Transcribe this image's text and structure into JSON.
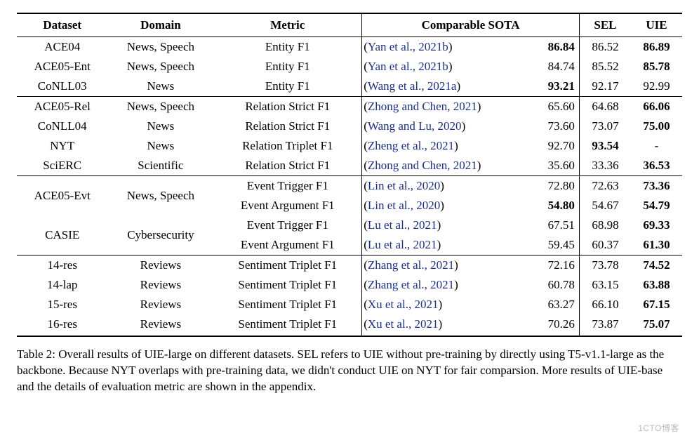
{
  "table": {
    "columns": [
      "Dataset",
      "Domain",
      "Metric",
      "Comparable SOTA",
      "",
      "SEL",
      "UIE"
    ],
    "header_fontweight": "bold",
    "column_align": [
      "center",
      "center",
      "center",
      "left",
      "right",
      "center",
      "center"
    ],
    "cite_color": "#1a2f8f",
    "border_color": "#000000",
    "groups": [
      {
        "rows": [
          {
            "dataset": "ACE04",
            "domain": "News, Speech",
            "metric": "Entity F1",
            "cite": "Yan et al., 2021b",
            "sota": "86.84",
            "sota_bold": true,
            "sel": "86.52",
            "uie": "86.89",
            "uie_bold": true
          },
          {
            "dataset": "ACE05-Ent",
            "domain": "News, Speech",
            "metric": "Entity F1",
            "cite": "Yan et al., 2021b",
            "sota": "84.74",
            "sel": "85.52",
            "uie": "85.78",
            "uie_bold": true
          },
          {
            "dataset": "CoNLL03",
            "domain": "News",
            "metric": "Entity F1",
            "cite": "Wang et al., 2021a",
            "sota": "93.21",
            "sota_bold": true,
            "sel": "92.17",
            "uie": "92.99"
          }
        ]
      },
      {
        "rows": [
          {
            "dataset": "ACE05-Rel",
            "domain": "News, Speech",
            "metric": "Relation Strict F1",
            "cite": "Zhong and Chen, 2021",
            "sota": "65.60",
            "sel": "64.68",
            "uie": "66.06",
            "uie_bold": true
          },
          {
            "dataset": "CoNLL04",
            "domain": "News",
            "metric": "Relation Strict F1",
            "cite": "Wang and Lu, 2020",
            "sota": "73.60",
            "sel": "73.07",
            "uie": "75.00",
            "uie_bold": true
          },
          {
            "dataset": "NYT",
            "domain": "News",
            "metric": "Relation Triplet F1",
            "cite": "Zheng et al., 2021",
            "sota": "92.70",
            "sel": "93.54",
            "sel_bold": true,
            "uie": "-"
          },
          {
            "dataset": "SciERC",
            "domain": "Scientific",
            "metric": "Relation Strict F1",
            "cite": "Zhong and Chen, 2021",
            "sota": "35.60",
            "sel": "33.36",
            "uie": "36.53",
            "uie_bold": true
          }
        ]
      },
      {
        "rows": [
          {
            "dataset": "ACE05-Evt",
            "domain": "News, Speech",
            "dataset_rowspan": 2,
            "domain_rowspan": 2,
            "metric": "Event Trigger F1",
            "cite": "Lin et al., 2020",
            "sota": "72.80",
            "sel": "72.63",
            "uie": "73.36",
            "uie_bold": true
          },
          {
            "metric": "Event Argument F1",
            "cite": "Lin et al., 2020",
            "sota": "54.80",
            "sota_bold": true,
            "sel": "54.67",
            "uie": "54.79",
            "uie_bold": true
          },
          {
            "dataset": "CASIE",
            "domain": "Cybersecurity",
            "dataset_rowspan": 2,
            "domain_rowspan": 2,
            "metric": "Event Trigger F1",
            "cite": "Lu et al., 2021",
            "sota": "67.51",
            "sel": "68.98",
            "uie": "69.33",
            "uie_bold": true
          },
          {
            "metric": "Event Argument F1",
            "cite": "Lu et al., 2021",
            "sota": "59.45",
            "sel": "60.37",
            "uie": "61.30",
            "uie_bold": true
          }
        ]
      },
      {
        "rows": [
          {
            "dataset": "14-res",
            "domain": "Reviews",
            "metric": "Sentiment Triplet F1",
            "cite": "Zhang et al., 2021",
            "sota": "72.16",
            "sel": "73.78",
            "uie": "74.52",
            "uie_bold": true
          },
          {
            "dataset": "14-lap",
            "domain": "Reviews",
            "metric": "Sentiment Triplet F1",
            "cite": "Zhang et al., 2021",
            "sota": "60.78",
            "sel": "63.15",
            "uie": "63.88",
            "uie_bold": true
          },
          {
            "dataset": "15-res",
            "domain": "Reviews",
            "metric": "Sentiment Triplet F1",
            "cite": "Xu et al., 2021",
            "sota": "63.27",
            "sel": "66.10",
            "uie": "67.15",
            "uie_bold": true
          },
          {
            "dataset": "16-res",
            "domain": "Reviews",
            "metric": "Sentiment Triplet F1",
            "cite": "Xu et al., 2021",
            "sota": "70.26",
            "sel": "73.87",
            "uie": "75.07",
            "uie_bold": true
          }
        ]
      }
    ]
  },
  "caption": "Table 2: Overall results of UIE-large on different datasets. SEL refers to UIE without pre-training by directly using T5-v1.1-large as the backbone. Because NYT overlaps with pre-training data, we didn't conduct UIE on NYT for fair comparsion. More results of UIE-base and the details of evaluation metric are shown in the appendix.",
  "watermark": "1CTO博客"
}
